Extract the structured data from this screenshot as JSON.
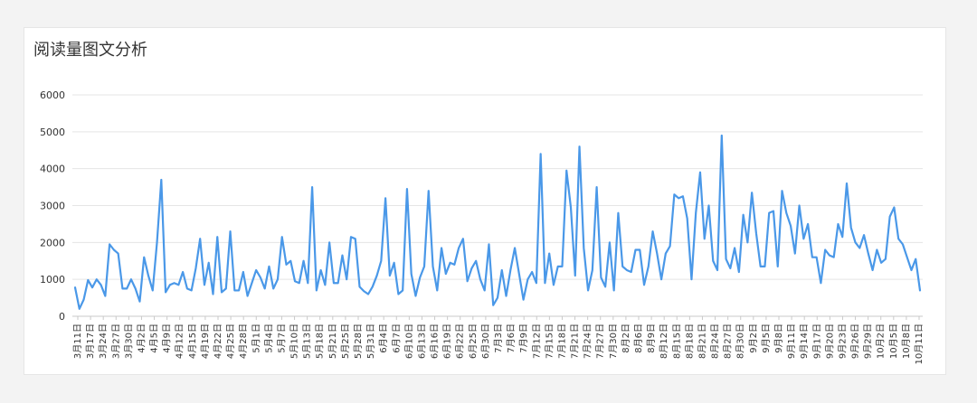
{
  "panel": {
    "title": "阅读量图文分析"
  },
  "colors": {
    "line": "#4a98e8",
    "grid": "#e5e5e5",
    "axis": "#c9c9c9",
    "text": "#333333",
    "background": "#f3f3f3",
    "card": "#ffffff"
  },
  "chart_data": {
    "type": "line",
    "title": "阅读量图文分析",
    "xlabel": "",
    "ylabel": "",
    "ylim": [
      0,
      6000
    ],
    "yticks": [
      0,
      1000,
      2000,
      3000,
      4000,
      5000,
      6000
    ],
    "grid": true,
    "legend": "none",
    "x_tick_labels": [
      "3月11日",
      "3月17日",
      "3月24日",
      "3月27日",
      "3月30日",
      "4月2日",
      "4月5日",
      "4月9日",
      "4月12日",
      "4月15日",
      "4月19日",
      "4月22日",
      "4月25日",
      "4月28日",
      "5月1日",
      "5月4日",
      "5月7日",
      "5月10日",
      "5月13日",
      "5月18日",
      "5月21日",
      "5月25日",
      "5月28日",
      "5月31日",
      "6月4日",
      "6月7日",
      "6月10日",
      "6月13日",
      "6月16日",
      "6月19日",
      "6月22日",
      "6月25日",
      "6月30日",
      "7月3日",
      "7月6日",
      "7月9日",
      "7月12日",
      "7月15日",
      "7月18日",
      "7月21日",
      "7月24日",
      "7月27日",
      "7月30日",
      "8月2日",
      "8月6日",
      "8月9日",
      "8月12日",
      "8月15日",
      "8月18日",
      "8月21日",
      "8月24日",
      "8月27日",
      "8月30日",
      "9月2日",
      "9月5日",
      "9月8日",
      "9月11日",
      "9月14日",
      "9月17日",
      "9月20日",
      "9月23日",
      "9月26日",
      "9月29日",
      "10月2日",
      "10月5日",
      "10月8日",
      "10月11日"
    ],
    "values": [
      780,
      200,
      450,
      980,
      780,
      1000,
      850,
      550,
      1950,
      1800,
      1700,
      750,
      750,
      1000,
      750,
      400,
      1600,
      1100,
      700,
      2000,
      3700,
      650,
      850,
      900,
      850,
      1200,
      750,
      700,
      1300,
      2100,
      850,
      1450,
      600,
      2150,
      650,
      750,
      2300,
      700,
      700,
      1200,
      550,
      900,
      1250,
      1050,
      750,
      1350,
      750,
      1000,
      2150,
      1400,
      1500,
      950,
      900,
      1500,
      900,
      3500,
      700,
      1250,
      850,
      2000,
      900,
      900,
      1650,
      1000,
      2150,
      2100,
      800,
      680,
      600,
      800,
      1100,
      1500,
      3200,
      1100,
      1450,
      600,
      700,
      3450,
      1150,
      550,
      1050,
      1350,
      3400,
      1350,
      700,
      1850,
      1150,
      1450,
      1400,
      1850,
      2100,
      950,
      1300,
      1500,
      1000,
      700,
      1950,
      300,
      500,
      1250,
      550,
      1250,
      1850,
      1150,
      450,
      1000,
      1200,
      900,
      4400,
      900,
      1700,
      850,
      1350,
      1350,
      3950,
      2950,
      1100,
      4600,
      1850,
      700,
      1250,
      3500,
      1050,
      800,
      2000,
      700,
      2800,
      1350,
      1250,
      1200,
      1800,
      1800,
      850,
      1350,
      2300,
      1700,
      1000,
      1700,
      1900,
      3300,
      3200,
      3250,
      2650,
      1000,
      2800,
      3900,
      2100,
      3000,
      1500,
      1250,
      4900,
      1550,
      1300,
      1850,
      1200,
      2750,
      2000,
      3350,
      2250,
      1350,
      1350,
      2800,
      2850,
      1350,
      3400,
      2800,
      2450,
      1700,
      3000,
      2100,
      2500,
      1600,
      1600,
      900,
      1800,
      1650,
      1600,
      2500,
      2150,
      3600,
      2400,
      2000,
      1850,
      2200,
      1700,
      1250,
      1800,
      1450,
      1550,
      2700,
      2950,
      2100,
      1950,
      1600,
      1250,
      1550,
      700
    ]
  }
}
